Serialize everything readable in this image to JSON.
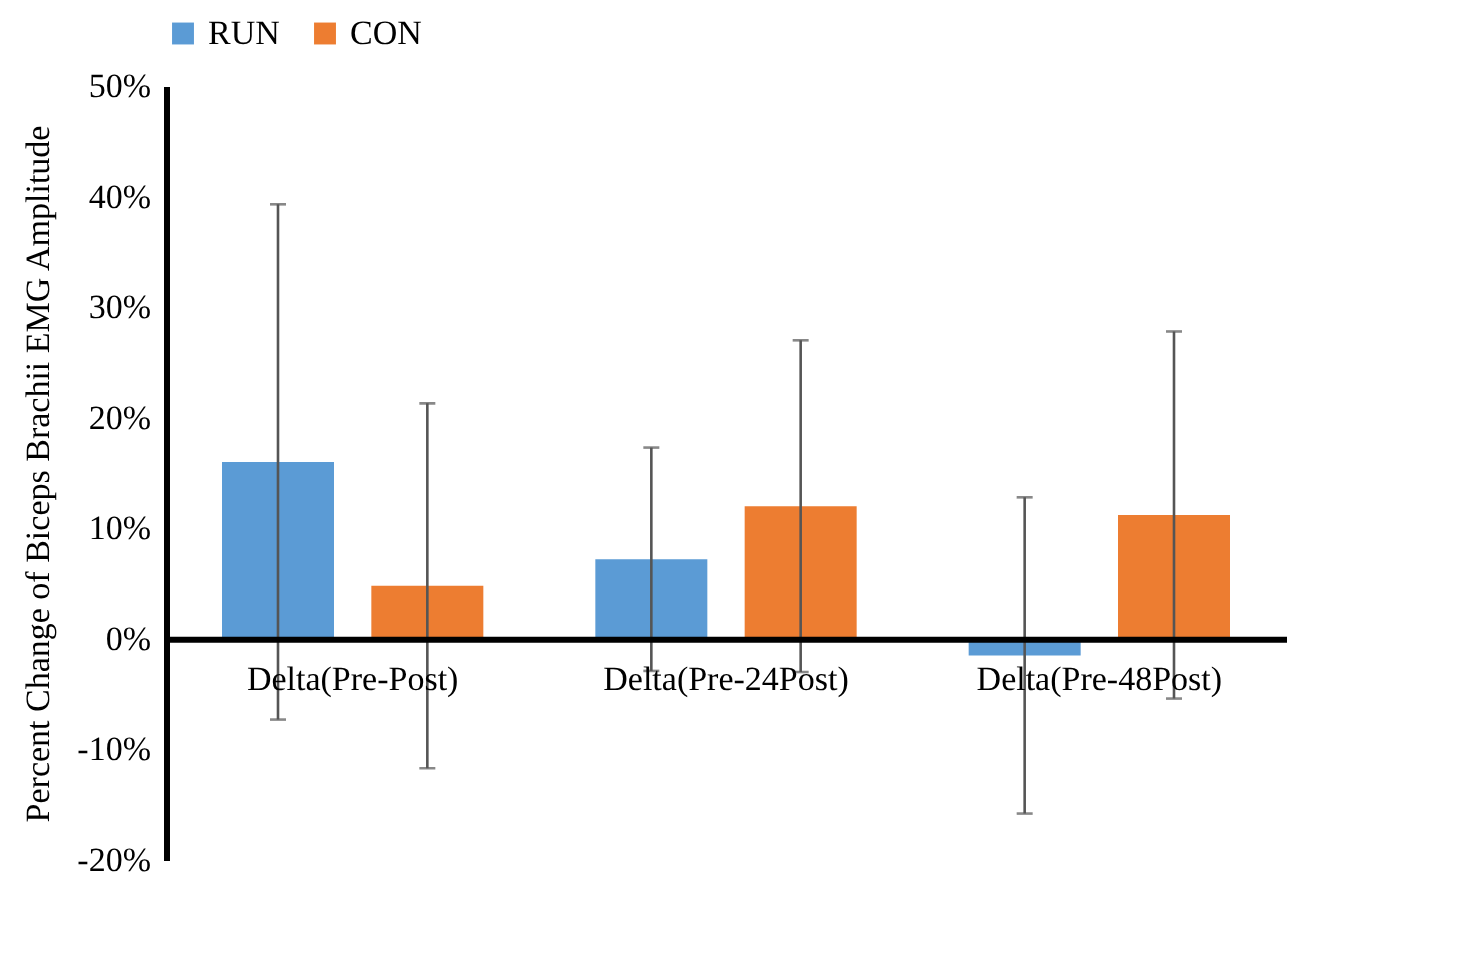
{
  "chart_data": {
    "type": "bar",
    "ylabel": "Percent Change of Biceps Brachii EMG Amplitude",
    "categories": [
      "Delta(Pre-Post)",
      "Delta(Pre-24Post)",
      "Delta(Pre-48Post)"
    ],
    "series": [
      {
        "name": "RUN",
        "color": "#5b9bd5",
        "values": [
          16.0,
          7.2,
          -1.5
        ],
        "errors": [
          23.3,
          10.1,
          14.3
        ]
      },
      {
        "name": "CON",
        "color": "#ed7d31",
        "values": [
          4.8,
          12.0,
          11.2
        ],
        "errors": [
          16.5,
          15.0,
          16.6
        ]
      }
    ],
    "ylim": [
      -20,
      50
    ],
    "yticks": [
      {
        "value": -20,
        "label": "-20%"
      },
      {
        "value": -10,
        "label": "-10%"
      },
      {
        "value": 0,
        "label": "0%"
      },
      {
        "value": 10,
        "label": "10%"
      },
      {
        "value": 20,
        "label": "20%"
      },
      {
        "value": 30,
        "label": "30%"
      },
      {
        "value": 40,
        "label": "40%"
      },
      {
        "value": 50,
        "label": "50%"
      }
    ],
    "legend": "top",
    "grid": false
  }
}
